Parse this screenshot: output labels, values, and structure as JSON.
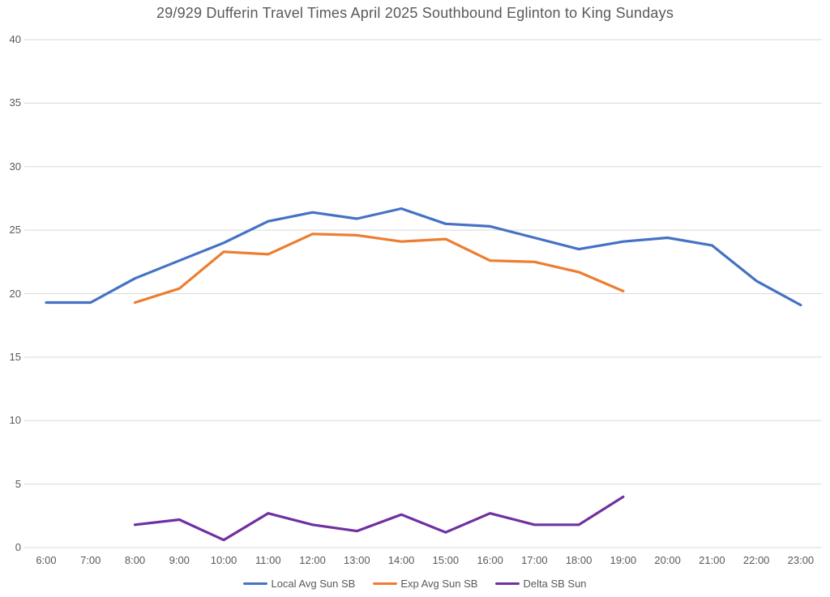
{
  "chart": {
    "title": "29/929 Dufferin Travel Times April 2025 Southbound Eglinton to King Sundays"
  },
  "chart_data": {
    "type": "line",
    "title": "29/929 Dufferin Travel Times April 2025 Southbound Eglinton to King Sundays",
    "xlabel": "",
    "ylabel": "",
    "ylim": [
      0,
      40
    ],
    "ytick_step": 5,
    "yticks": [
      0,
      5,
      10,
      15,
      20,
      25,
      30,
      35,
      40
    ],
    "grid": true,
    "gridline_color": "#D9D9D9",
    "text_color": "#595959",
    "legend_position": "bottom",
    "categories": [
      "6:00",
      "7:00",
      "8:00",
      "9:00",
      "10:00",
      "11:00",
      "12:00",
      "13:00",
      "14:00",
      "15:00",
      "16:00",
      "17:00",
      "18:00",
      "19:00",
      "20:00",
      "21:00",
      "22:00",
      "23:00"
    ],
    "series": [
      {
        "name": "Local Avg Sun SB",
        "color": "#4472C4",
        "values": [
          19.3,
          19.3,
          21.2,
          22.6,
          24.0,
          25.7,
          26.4,
          25.9,
          26.7,
          25.5,
          25.3,
          24.4,
          23.5,
          24.1,
          24.4,
          23.8,
          21.0,
          19.1
        ]
      },
      {
        "name": "Exp Avg Sun SB",
        "color": "#ED7D31",
        "values": [
          null,
          null,
          19.3,
          20.4,
          23.3,
          23.1,
          24.7,
          24.6,
          24.1,
          24.3,
          22.6,
          22.5,
          21.7,
          20.2,
          null,
          null,
          null,
          null
        ]
      },
      {
        "name": "Delta SB Sun",
        "color": "#7030A0",
        "values": [
          null,
          null,
          1.8,
          2.2,
          0.6,
          2.7,
          1.8,
          1.3,
          2.6,
          1.2,
          2.7,
          1.8,
          1.8,
          4.0,
          null,
          null,
          null,
          null
        ]
      }
    ]
  }
}
